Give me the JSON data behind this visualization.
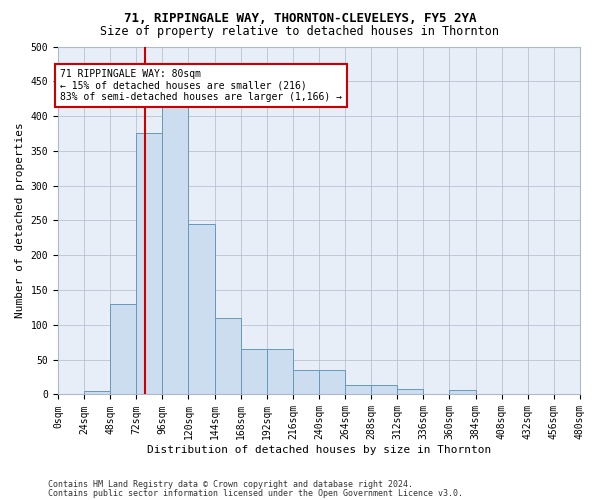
{
  "title1": "71, RIPPINGALE WAY, THORNTON-CLEVELEYS, FY5 2YA",
  "title2": "Size of property relative to detached houses in Thornton",
  "xlabel": "Distribution of detached houses by size in Thornton",
  "ylabel": "Number of detached properties",
  "footer1": "Contains HM Land Registry data © Crown copyright and database right 2024.",
  "footer2": "Contains public sector information licensed under the Open Government Licence v3.0.",
  "bin_edges": [
    0,
    24,
    48,
    72,
    96,
    120,
    144,
    168,
    192,
    216,
    240,
    264,
    288,
    312,
    336,
    360,
    384,
    408,
    432,
    456,
    480
  ],
  "bar_heights": [
    0,
    5,
    130,
    375,
    415,
    245,
    110,
    65,
    65,
    35,
    35,
    13,
    13,
    8,
    0,
    7,
    0,
    0,
    0,
    0
  ],
  "bar_color": "#ccddf0",
  "bar_edgecolor": "#6699bb",
  "vline_x": 80,
  "vline_color": "#cc0000",
  "annotation_text": "71 RIPPINGALE WAY: 80sqm\n← 15% of detached houses are smaller (216)\n83% of semi-detached houses are larger (1,166) →",
  "annotation_box_color": "#cc0000",
  "annotation_text_color": "#000000",
  "ylim": [
    0,
    500
  ],
  "xlim": [
    0,
    480
  ],
  "background_color": "#ffffff",
  "axes_bg_color": "#e8eef8",
  "grid_color": "#b0b8cc",
  "tick_fontsize": 7,
  "label_fontsize": 8,
  "title1_fontsize": 9,
  "title2_fontsize": 8.5
}
